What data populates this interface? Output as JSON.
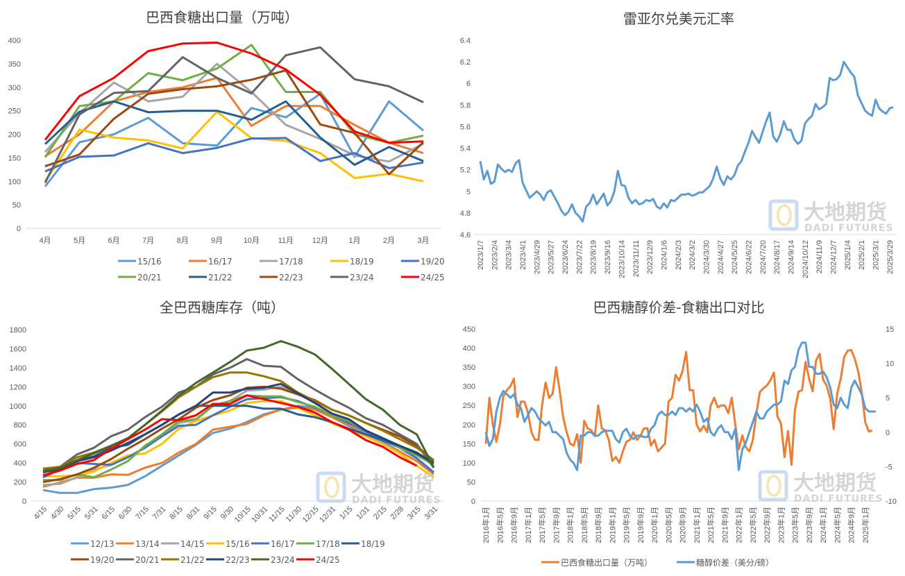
{
  "watermark": {
    "cn": "大地期货",
    "en": "DADI FUTURES"
  },
  "chart_data": [
    {
      "id": "exports",
      "type": "line",
      "title": "巴西食糖出口量（万吨）",
      "ylim": [
        0,
        400
      ],
      "yticks": [
        0,
        50,
        100,
        150,
        200,
        250,
        300,
        350,
        400
      ],
      "categories": [
        "4月",
        "5月",
        "6月",
        "7月",
        "8月",
        "9月",
        "10月",
        "11月",
        "12月",
        "1月",
        "2月",
        "3月"
      ],
      "legend_position": "bottom",
      "series": [
        {
          "name": "15/16",
          "color": "#5b9bd5",
          "values": [
            89,
            183,
            200,
            235,
            181,
            176,
            256,
            236,
            286,
            152,
            270,
            208
          ]
        },
        {
          "name": "16/17",
          "color": "#ed7d31",
          "values": [
            153,
            200,
            270,
            290,
            300,
            320,
            218,
            260,
            260,
            220,
            182,
            160
          ]
        },
        {
          "name": "17/18",
          "color": "#a5a5a5",
          "values": [
            162,
            245,
            310,
            270,
            280,
            350,
            290,
            220,
            190,
            155,
            142,
            180
          ]
        },
        {
          "name": "18/19",
          "color": "#ffc000",
          "values": [
            100,
            210,
            193,
            187,
            170,
            248,
            192,
            186,
            160,
            107,
            116,
            100
          ]
        },
        {
          "name": "19/20",
          "color": "#4472c4",
          "values": [
            121,
            152,
            155,
            181,
            160,
            171,
            191,
            192,
            143,
            160,
            128,
            140
          ]
        },
        {
          "name": "20/21",
          "color": "#70ad47",
          "values": [
            151,
            260,
            270,
            330,
            315,
            340,
            390,
            290,
            290,
            200,
            182,
            197
          ]
        },
        {
          "name": "21/22",
          "color": "#255e91",
          "values": [
            179,
            248,
            270,
            247,
            250,
            250,
            231,
            270,
            193,
            135,
            173,
            143
          ]
        },
        {
          "name": "22/23",
          "color": "#9e480e",
          "values": [
            132,
            157,
            233,
            286,
            296,
            302,
            316,
            336,
            221,
            203,
            115,
            183
          ]
        },
        {
          "name": "23/24",
          "color": "#636363",
          "values": [
            97,
            242,
            288,
            292,
            364,
            320,
            287,
            368,
            385,
            317,
            302,
            268
          ]
        },
        {
          "name": "24/25",
          "color": "#ff0000",
          "values": [
            188,
            281,
            320,
            377,
            393,
            395,
            372,
            338,
            284,
            206,
            182,
            185
          ]
        }
      ]
    },
    {
      "id": "brl",
      "type": "line",
      "title": "雷亚尔兑美元汇率",
      "ylim": [
        4.6,
        6.4
      ],
      "yticks": [
        4.6,
        4.8,
        5,
        5.2,
        5.4,
        5.6,
        5.8,
        6,
        6.2,
        6.4
      ],
      "xtick_labels": [
        "2023/1/7",
        "2023/2/4",
        "2023/3/4",
        "2023/4/1",
        "2023/4/29",
        "2023/5/27",
        "2023/6/24",
        "2023/7/22",
        "2023/8/19",
        "2023/9/16",
        "2023/10/14",
        "2023/11/11",
        "2023/12/9",
        "2024/1/6",
        "2024/2/3",
        "2024/3/2",
        "2024/3/30",
        "2024/4/27",
        "2024/5/25",
        "2024/6/22",
        "2024/7/20",
        "2024/8/17",
        "2024/9/14",
        "2024/10/12",
        "2024/11/9",
        "2024/12/7",
        "2025/1/4",
        "2025/2/1",
        "2025/3/1",
        "2025/3/29"
      ],
      "series": [
        {
          "name": "BRL/USD",
          "color": "#5b9bd5",
          "values": [
            5.28,
            5.11,
            5.19,
            5.07,
            5.09,
            5.25,
            5.21,
            5.18,
            5.2,
            5.18,
            5.26,
            5.29,
            5.08,
            5.01,
            4.94,
            4.97,
            5.0,
            4.97,
            4.92,
            4.99,
            5.01,
            4.95,
            4.89,
            4.82,
            4.78,
            4.81,
            4.88,
            4.8,
            4.77,
            4.72,
            4.86,
            4.89,
            4.97,
            4.88,
            4.93,
            4.98,
            4.87,
            4.91,
            5.0,
            5.19,
            5.06,
            5.05,
            4.94,
            4.89,
            4.92,
            4.88,
            4.89,
            4.92,
            4.91,
            4.93,
            4.86,
            4.84,
            4.89,
            4.85,
            4.92,
            4.91,
            4.94,
            4.97,
            4.97,
            4.98,
            4.96,
            4.97,
            4.99,
            4.99,
            5.02,
            5.05,
            5.12,
            5.23,
            5.12,
            5.06,
            5.14,
            5.11,
            5.15,
            5.24,
            5.28,
            5.37,
            5.45,
            5.56,
            5.5,
            5.45,
            5.55,
            5.65,
            5.73,
            5.51,
            5.46,
            5.53,
            5.65,
            5.57,
            5.57,
            5.48,
            5.44,
            5.47,
            5.63,
            5.67,
            5.7,
            5.81,
            5.76,
            5.78,
            5.81,
            6.05,
            6.03,
            6.04,
            6.08,
            6.2,
            6.15,
            6.1,
            6.06,
            5.89,
            5.82,
            5.75,
            5.72,
            5.7,
            5.85,
            5.77,
            5.74,
            5.72,
            5.77,
            5.78
          ]
        }
      ]
    },
    {
      "id": "stocks",
      "type": "line",
      "title": "全巴西糖库存（吨）",
      "ylim": [
        0,
        1800
      ],
      "yticks": [
        0,
        200,
        400,
        600,
        800,
        1000,
        1200,
        1400,
        1600,
        1800
      ],
      "categories": [
        "4/15",
        "4/30",
        "5/15",
        "5/31",
        "6/15",
        "6/30",
        "7/15",
        "7/31",
        "8/15",
        "8/31",
        "9/15",
        "9/30",
        "10/15",
        "10/31",
        "11/15",
        "11/30",
        "12/15",
        "12/31",
        "1/15",
        "1/31",
        "2/15",
        "2/28",
        "3/15",
        "3/31"
      ],
      "legend_position": "bottom",
      "series": [
        {
          "name": "12/13",
          "color": "#5b9bd5",
          "values": [
            115,
            85,
            85,
            125,
            140,
            170,
            260,
            370,
            480,
            590,
            715,
            760,
            830,
            910,
            960,
            1000,
            980,
            880,
            790,
            700,
            620,
            520,
            420,
            300
          ]
        },
        {
          "name": "13/14",
          "color": "#ed7d31",
          "values": [
            150,
            195,
            245,
            245,
            280,
            275,
            350,
            400,
            510,
            600,
            750,
            780,
            810,
            900,
            960,
            980,
            960,
            880,
            800,
            680,
            600,
            520,
            420,
            280
          ]
        },
        {
          "name": "14/15",
          "color": "#a5a5a5",
          "values": [
            170,
            180,
            250,
            330,
            380,
            460,
            560,
            680,
            820,
            850,
            1000,
            1050,
            1160,
            1170,
            1200,
            1120,
            1040,
            900,
            820,
            720,
            650,
            560,
            450,
            300
          ]
        },
        {
          "name": "15/16",
          "color": "#ffc000",
          "values": [
            260,
            260,
            270,
            310,
            400,
            480,
            500,
            600,
            760,
            840,
            900,
            950,
            1030,
            1050,
            1050,
            980,
            900,
            820,
            750,
            680,
            600,
            500,
            370,
            250
          ]
        },
        {
          "name": "16/17",
          "color": "#4472c4",
          "values": [
            250,
            330,
            400,
            390,
            380,
            460,
            560,
            680,
            790,
            800,
            900,
            990,
            1070,
            1080,
            1090,
            1050,
            980,
            900,
            820,
            730,
            640,
            560,
            450,
            300
          ]
        },
        {
          "name": "17/18",
          "color": "#70ad47",
          "values": [
            220,
            220,
            280,
            250,
            330,
            420,
            580,
            700,
            840,
            860,
            1000,
            1050,
            1110,
            1100,
            1100,
            1040,
            990,
            900,
            840,
            740,
            660,
            560,
            480,
            380
          ]
        },
        {
          "name": "18/19",
          "color": "#255e91",
          "values": [
            310,
            320,
            420,
            470,
            560,
            590,
            700,
            800,
            910,
            1000,
            1000,
            1000,
            1000,
            970,
            970,
            910,
            880,
            830,
            760,
            700,
            640,
            580,
            510,
            400
          ]
        },
        {
          "name": "19/20",
          "color": "#9e480e",
          "values": [
            200,
            230,
            280,
            350,
            440,
            550,
            650,
            760,
            860,
            980,
            1060,
            1110,
            1190,
            1200,
            1180,
            1120,
            1060,
            960,
            900,
            820,
            750,
            680,
            580,
            420
          ]
        },
        {
          "name": "20/21",
          "color": "#636363",
          "values": [
            320,
            360,
            490,
            560,
            680,
            750,
            880,
            990,
            1140,
            1200,
            1330,
            1400,
            1490,
            1420,
            1410,
            1280,
            1170,
            1070,
            980,
            870,
            800,
            700,
            600,
            350
          ]
        },
        {
          "name": "21/22",
          "color": "#997300",
          "values": [
            340,
            360,
            460,
            510,
            580,
            660,
            800,
            940,
            1090,
            1200,
            1300,
            1350,
            1350,
            1310,
            1260,
            1140,
            1050,
            960,
            900,
            820,
            740,
            650,
            560,
            430
          ]
        },
        {
          "name": "22/23",
          "color": "#264478",
          "values": [
            300,
            340,
            420,
            460,
            530,
            610,
            700,
            800,
            910,
            1000,
            1140,
            1140,
            1180,
            1190,
            1230,
            1130,
            1030,
            920,
            860,
            740,
            660,
            580,
            500,
            400
          ]
        },
        {
          "name": "23/24",
          "color": "#43682b",
          "values": [
            310,
            350,
            430,
            500,
            580,
            660,
            800,
            950,
            1110,
            1240,
            1350,
            1460,
            1580,
            1610,
            1680,
            1620,
            1540,
            1390,
            1230,
            1070,
            960,
            800,
            700,
            350
          ]
        },
        {
          "name": "24/25",
          "color": "#ff0000",
          "values": [
            270,
            320,
            390,
            430,
            550,
            650,
            750,
            860,
            850,
            900,
            1020,
            1020,
            1110,
            1070,
            1030,
            990,
            930,
            830,
            750,
            640,
            570,
            460,
            370,
            null
          ]
        }
      ]
    },
    {
      "id": "spread",
      "type": "line",
      "title": "巴西糖醇价差-食糖出口对比",
      "ylim": [
        0,
        450
      ],
      "yticks": [
        0,
        50,
        100,
        150,
        200,
        250,
        300,
        350,
        400,
        450
      ],
      "y2lim": [
        -10,
        15
      ],
      "y2ticks": [
        -10,
        -5,
        0,
        5,
        10,
        15
      ],
      "xtick_labels": [
        "2016年1月",
        "2016年5月",
        "2016年9月",
        "2017年1月",
        "2017年5月",
        "2017年9月",
        "2018年1月",
        "2018年5月",
        "2018年9月",
        "2019年1月",
        "2019年5月",
        "2019年9月",
        "2020年1月",
        "2020年5月",
        "2020年9月",
        "2021年1月",
        "2021年5月",
        "2021年9月",
        "2022年1月",
        "2022年5月",
        "2022年9月",
        "2023年1月",
        "2023年5月",
        "2023年9月",
        "2024年1月",
        "2024年5月",
        "2024年9月",
        "2025年1月"
      ],
      "legend_position": "bottom",
      "series": [
        {
          "name": "巴西食糖出口量（万吨）",
          "color": "#ed7d31",
          "axis": "left",
          "values": [
            150,
            270,
            200,
            155,
            200,
            275,
            290,
            300,
            320,
            220,
            260,
            260,
            230,
            180,
            160,
            160,
            250,
            310,
            270,
            280,
            350,
            290,
            220,
            180,
            150,
            145,
            175,
            100,
            210,
            190,
            185,
            170,
            250,
            190,
            185,
            160,
            105,
            115,
            100,
            130,
            155,
            160,
            180,
            160,
            170,
            190,
            190,
            145,
            160,
            130,
            140,
            150,
            260,
            270,
            330,
            315,
            340,
            390,
            290,
            290,
            200,
            182,
            197,
            180,
            250,
            270,
            245,
            250,
            250,
            230,
            270,
            200,
            135,
            172,
            140,
            130,
            160,
            230,
            285,
            295,
            302,
            316,
            336,
            221,
            203,
            115,
            183,
            95,
            240,
            286,
            290,
            364,
            320,
            287,
            368,
            385,
            317,
            302,
            268,
            188,
            281,
            320,
            377,
            393,
            395,
            372,
            338,
            284,
            206,
            182,
            185
          ]
        },
        {
          "name": "糖醇价差（美分/磅）",
          "color": "#5b9bd5",
          "axis": "right",
          "values": [
            0,
            -2,
            -1,
            3,
            5,
            6,
            5.5,
            5,
            5.5,
            4,
            3.5,
            1.5,
            2.5,
            3.5,
            3,
            2,
            1.5,
            1,
            1.5,
            0,
            0,
            -0.5,
            -1,
            -3,
            -4,
            -4.5,
            -5.5,
            -0.5,
            -0.5,
            0,
            0,
            -0.5,
            -0.5,
            0,
            0.2,
            0.2,
            0.2,
            -1,
            -1.5,
            0,
            0.5,
            -0.5,
            -1,
            -0.5,
            -0.5,
            -0.7,
            -0.7,
            0.5,
            1,
            2.5,
            3,
            2.5,
            2.5,
            3,
            2.5,
            3.5,
            3.5,
            3,
            3.5,
            3,
            4,
            3,
            1.5,
            2,
            0,
            -0.5,
            0.5,
            1,
            0,
            0,
            -1,
            0.5,
            -5.5,
            -2.5,
            -1.5,
            0,
            1.5,
            3,
            2,
            2,
            3,
            3.5,
            4,
            4,
            4.5,
            7.5,
            7,
            9,
            9.5,
            12,
            13,
            13,
            9.5,
            9.5,
            8.5,
            8.5,
            8.8,
            8,
            6.5,
            4,
            3.5,
            5,
            4,
            3.5,
            6.5,
            7.5,
            6.5,
            5.5,
            3.5,
            3,
            3,
            3
          ]
        }
      ]
    }
  ]
}
